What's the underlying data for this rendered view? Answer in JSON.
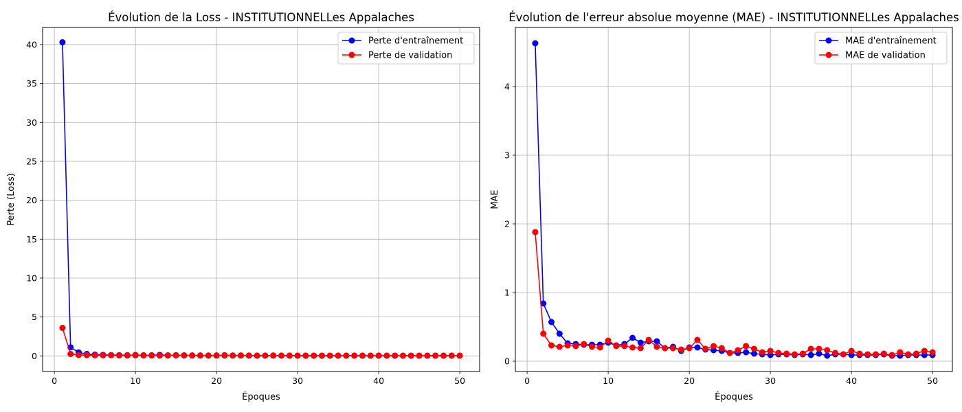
{
  "chart_data": [
    {
      "type": "line",
      "title": "Évolution de la Loss - INSTITUTIONNELLes Appalaches",
      "xlabel": "Époques",
      "ylabel": "Perte (Loss)",
      "xlim": [
        -1.45,
        52.45
      ],
      "ylim": [
        -2.0,
        42.2
      ],
      "xticks": [
        0,
        10,
        20,
        30,
        40,
        50
      ],
      "yticks": [
        0,
        5,
        10,
        15,
        20,
        25,
        30,
        35,
        40
      ],
      "grid": true,
      "legend_position": "top-right",
      "x": [
        1,
        2,
        3,
        4,
        5,
        6,
        7,
        8,
        9,
        10,
        11,
        12,
        13,
        14,
        15,
        16,
        17,
        18,
        19,
        20,
        21,
        22,
        23,
        24,
        25,
        26,
        27,
        28,
        29,
        30,
        31,
        32,
        33,
        34,
        35,
        36,
        37,
        38,
        39,
        40,
        41,
        42,
        43,
        44,
        45,
        46,
        47,
        48,
        49,
        50
      ],
      "series": [
        {
          "name": "Perte d'entraînement",
          "color": "#0000ff",
          "values": [
            40.3,
            1.1,
            0.45,
            0.25,
            0.17,
            0.13,
            0.11,
            0.1,
            0.09,
            0.09,
            0.08,
            0.08,
            0.13,
            0.07,
            0.07,
            0.07,
            0.06,
            0.06,
            0.05,
            0.06,
            0.05,
            0.05,
            0.05,
            0.04,
            0.04,
            0.04,
            0.04,
            0.04,
            0.04,
            0.03,
            0.03,
            0.03,
            0.03,
            0.03,
            0.03,
            0.03,
            0.03,
            0.03,
            0.03,
            0.03,
            0.03,
            0.03,
            0.03,
            0.03,
            0.03,
            0.03,
            0.03,
            0.03,
            0.03,
            0.03
          ]
        },
        {
          "name": "Perte de validation",
          "color": "#ff0000",
          "values": [
            3.6,
            0.25,
            0.12,
            0.1,
            0.08,
            0.08,
            0.09,
            0.07,
            0.06,
            0.13,
            0.07,
            0.06,
            0.05,
            0.05,
            0.1,
            0.07,
            0.06,
            0.05,
            0.04,
            0.05,
            0.1,
            0.05,
            0.06,
            0.05,
            0.03,
            0.04,
            0.06,
            0.04,
            0.03,
            0.03,
            0.03,
            0.03,
            0.03,
            0.03,
            0.04,
            0.04,
            0.04,
            0.03,
            0.03,
            0.04,
            0.03,
            0.03,
            0.03,
            0.03,
            0.03,
            0.03,
            0.03,
            0.03,
            0.04,
            0.03
          ]
        }
      ]
    },
    {
      "type": "line",
      "title": "Évolution de l'erreur absolue moyenne (MAE) - INSTITUTIONNELLes Appalaches",
      "xlabel": "Époques",
      "ylabel": "MAE",
      "xlim": [
        -1.45,
        52.45
      ],
      "ylim": [
        -0.15,
        4.86
      ],
      "xticks": [
        0,
        10,
        20,
        30,
        40,
        50
      ],
      "yticks": [
        0,
        1,
        2,
        3,
        4
      ],
      "grid": true,
      "legend_position": "top-right",
      "x": [
        1,
        2,
        3,
        4,
        5,
        6,
        7,
        8,
        9,
        10,
        11,
        12,
        13,
        14,
        15,
        16,
        17,
        18,
        19,
        20,
        21,
        22,
        23,
        24,
        25,
        26,
        27,
        28,
        29,
        30,
        31,
        32,
        33,
        34,
        35,
        36,
        37,
        38,
        39,
        40,
        41,
        42,
        43,
        44,
        45,
        46,
        47,
        48,
        49,
        50
      ],
      "series": [
        {
          "name": "MAE d'entraînement",
          "color": "#0000ff",
          "values": [
            4.63,
            0.84,
            0.57,
            0.4,
            0.26,
            0.25,
            0.24,
            0.24,
            0.24,
            0.27,
            0.23,
            0.25,
            0.34,
            0.27,
            0.29,
            0.29,
            0.19,
            0.21,
            0.15,
            0.2,
            0.2,
            0.17,
            0.16,
            0.15,
            0.12,
            0.12,
            0.13,
            0.11,
            0.1,
            0.09,
            0.1,
            0.1,
            0.09,
            0.1,
            0.09,
            0.11,
            0.08,
            0.1,
            0.1,
            0.09,
            0.09,
            0.09,
            0.09,
            0.1,
            0.08,
            0.08,
            0.09,
            0.09,
            0.09,
            0.09
          ]
        },
        {
          "name": "MAE de validation",
          "color": "#ff0000",
          "values": [
            1.88,
            0.4,
            0.23,
            0.21,
            0.23,
            0.22,
            0.25,
            0.21,
            0.2,
            0.3,
            0.22,
            0.22,
            0.2,
            0.19,
            0.31,
            0.21,
            0.19,
            0.19,
            0.17,
            0.19,
            0.31,
            0.18,
            0.22,
            0.19,
            0.12,
            0.16,
            0.22,
            0.18,
            0.13,
            0.15,
            0.12,
            0.11,
            0.1,
            0.11,
            0.18,
            0.18,
            0.16,
            0.12,
            0.1,
            0.15,
            0.11,
            0.1,
            0.1,
            0.11,
            0.09,
            0.13,
            0.1,
            0.11,
            0.15,
            0.13
          ]
        }
      ]
    }
  ]
}
